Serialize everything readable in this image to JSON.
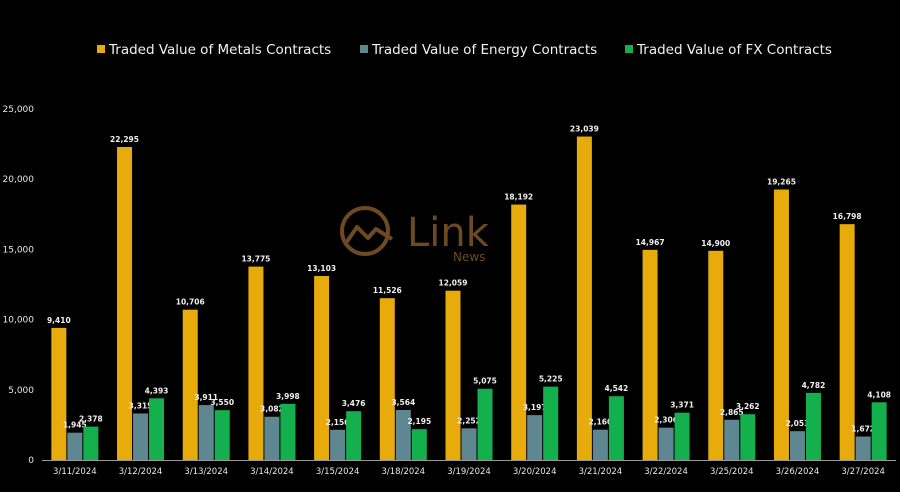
{
  "chart_data": {
    "type": "bar",
    "categories": [
      "3/11/2024",
      "3/12/2024",
      "3/13/2024",
      "3/14/2024",
      "3/15/2024",
      "3/18/2024",
      "3/19/2024",
      "3/20/2024",
      "3/21/2024",
      "3/22/2024",
      "3/25/2024",
      "3/26/2024",
      "3/27/2024"
    ],
    "series": [
      {
        "name": "Traded Value of Metals Contracts",
        "color": "#e8ab0c",
        "values": [
          9410,
          22295,
          10706,
          13775,
          13103,
          11526,
          12059,
          18192,
          23039,
          14967,
          14900,
          19265,
          16798
        ],
        "labels": [
          "9,410",
          "22,295",
          "10,706",
          "13,775",
          "13,103",
          "11,526",
          "12,059",
          "18,192",
          "23,039",
          "14,967",
          "14,900",
          "19,265",
          "16,798"
        ]
      },
      {
        "name": "Traded Value of Energy Contracts",
        "color": "#5f8792",
        "values": [
          1945,
          3315,
          3911,
          3082,
          2150,
          3564,
          2252,
          3197,
          2160,
          2306,
          2865,
          2053,
          1672
        ],
        "labels": [
          "1,945",
          "3,315",
          "3,911",
          "3,082",
          "2,150",
          "3,564",
          "2,252",
          "3,197",
          "2,160",
          "2,306",
          "2,865",
          "2,053",
          "1,672"
        ]
      },
      {
        "name": "Traded Value of FX Contracts",
        "color": "#14b04e",
        "values": [
          2378,
          4393,
          3550,
          3998,
          3476,
          2195,
          5075,
          5225,
          4542,
          3371,
          3262,
          4782,
          4108
        ],
        "labels": [
          "2,378",
          "4,393",
          "3,550",
          "3,998",
          "3,476",
          "2,195",
          "5,075",
          "5,225",
          "4,542",
          "3,371",
          "3,262",
          "4,782",
          "4,108"
        ]
      }
    ],
    "yticks": [
      0,
      5000,
      10000,
      15000,
      20000,
      25000
    ],
    "ytick_labels": [
      "0",
      "5,000",
      "10,000",
      "15,000",
      "20,000",
      "25,000"
    ],
    "ylim": [
      0,
      25000
    ],
    "grid": false,
    "legend_position": "top-center"
  },
  "watermark": {
    "brand": "Link",
    "sub": "News"
  }
}
